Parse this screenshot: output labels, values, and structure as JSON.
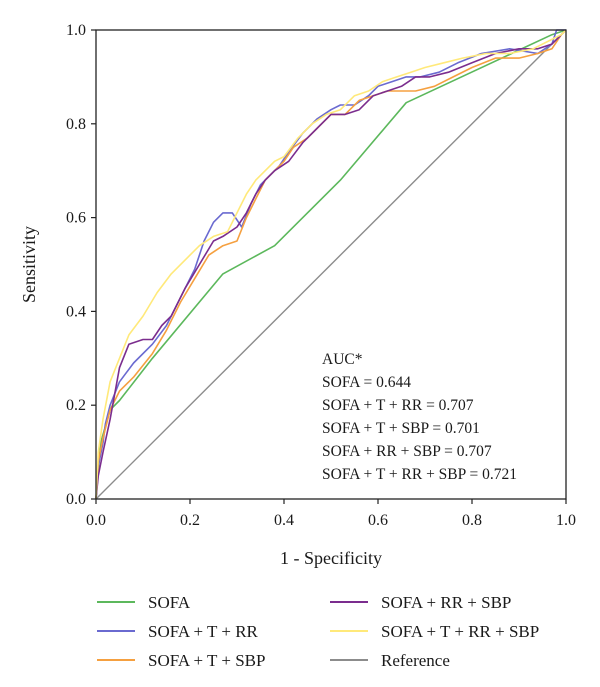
{
  "chart_data": {
    "type": "line",
    "title": "",
    "xlabel": "1 - Specificity",
    "ylabel": "Sensitivity",
    "xlim": [
      0,
      1
    ],
    "ylim": [
      0,
      1
    ],
    "xticks": [
      "0.0",
      "0.2",
      "0.4",
      "0.6",
      "0.8",
      "1.0"
    ],
    "yticks": [
      "0.0",
      "0.2",
      "0.4",
      "0.6",
      "0.8",
      "1.0"
    ],
    "grid": false,
    "legend_placement": "bottom",
    "annotation": {
      "heading": "AUC*",
      "lines": [
        "SOFA = 0.644",
        "SOFA + T + RR = 0.707",
        "SOFA + T + SBP = 0.701",
        "SOFA + RR + SBP = 0.707",
        "SOFA + T + RR + SBP = 0.721"
      ]
    },
    "series": [
      {
        "name": "SOFA",
        "color": "#5cb85c",
        "x": [
          0,
          0.01,
          0.03,
          0.05,
          0.12,
          0.27,
          0.38,
          0.52,
          0.66,
          0.97,
          1.0
        ],
        "y": [
          0,
          0.12,
          0.19,
          0.21,
          0.3,
          0.48,
          0.54,
          0.68,
          0.845,
          0.99,
          1.0
        ]
      },
      {
        "name": "SOFA + T + RR",
        "color": "#6a6ad0",
        "x": [
          0,
          0.005,
          0.015,
          0.02,
          0.03,
          0.05,
          0.08,
          0.12,
          0.15,
          0.18,
          0.21,
          0.23,
          0.25,
          0.27,
          0.29,
          0.31,
          0.33,
          0.35,
          0.37,
          0.39,
          0.41,
          0.44,
          0.47,
          0.5,
          0.52,
          0.55,
          0.58,
          0.6,
          0.63,
          0.66,
          0.69,
          0.73,
          0.77,
          0.82,
          0.88,
          0.94,
          0.97,
          0.98,
          1.0
        ],
        "y": [
          0,
          0.07,
          0.12,
          0.16,
          0.2,
          0.25,
          0.29,
          0.33,
          0.37,
          0.43,
          0.49,
          0.55,
          0.59,
          0.61,
          0.61,
          0.58,
          0.63,
          0.67,
          0.69,
          0.71,
          0.74,
          0.78,
          0.81,
          0.83,
          0.84,
          0.84,
          0.86,
          0.88,
          0.89,
          0.9,
          0.9,
          0.91,
          0.93,
          0.95,
          0.96,
          0.95,
          0.97,
          1.0,
          1.0
        ]
      },
      {
        "name": "SOFA + T + SBP",
        "color": "#f5a040",
        "x": [
          0,
          0.005,
          0.015,
          0.03,
          0.05,
          0.08,
          0.12,
          0.15,
          0.18,
          0.21,
          0.24,
          0.27,
          0.3,
          0.32,
          0.34,
          0.36,
          0.38,
          0.4,
          0.42,
          0.45,
          0.48,
          0.5,
          0.53,
          0.56,
          0.59,
          0.62,
          0.65,
          0.68,
          0.72,
          0.76,
          0.8,
          0.85,
          0.9,
          0.94,
          0.97,
          0.99,
          1.0
        ],
        "y": [
          0,
          0.08,
          0.13,
          0.19,
          0.23,
          0.26,
          0.31,
          0.36,
          0.42,
          0.47,
          0.52,
          0.54,
          0.55,
          0.6,
          0.64,
          0.68,
          0.7,
          0.72,
          0.75,
          0.77,
          0.8,
          0.82,
          0.82,
          0.85,
          0.86,
          0.87,
          0.87,
          0.87,
          0.88,
          0.9,
          0.92,
          0.94,
          0.94,
          0.95,
          0.96,
          0.99,
          1.0
        ]
      },
      {
        "name": "SOFA + RR + SBP",
        "color": "#7b2d8e",
        "x": [
          0,
          0.005,
          0.015,
          0.03,
          0.05,
          0.07,
          0.1,
          0.12,
          0.14,
          0.16,
          0.19,
          0.22,
          0.25,
          0.27,
          0.3,
          0.32,
          0.34,
          0.36,
          0.38,
          0.41,
          0.44,
          0.47,
          0.5,
          0.53,
          0.56,
          0.59,
          0.62,
          0.65,
          0.68,
          0.71,
          0.75,
          0.8,
          0.85,
          0.9,
          0.94,
          0.97,
          0.99,
          1.0
        ],
        "y": [
          0,
          0.05,
          0.1,
          0.17,
          0.28,
          0.33,
          0.34,
          0.34,
          0.37,
          0.39,
          0.45,
          0.5,
          0.55,
          0.56,
          0.58,
          0.61,
          0.65,
          0.68,
          0.7,
          0.72,
          0.76,
          0.79,
          0.82,
          0.82,
          0.83,
          0.86,
          0.87,
          0.88,
          0.9,
          0.9,
          0.91,
          0.93,
          0.95,
          0.96,
          0.96,
          0.97,
          0.99,
          1.0
        ]
      },
      {
        "name": "SOFA + T + RR + SBP",
        "color": "#ffe97a",
        "x": [
          0,
          0.005,
          0.015,
          0.03,
          0.05,
          0.07,
          0.1,
          0.13,
          0.16,
          0.19,
          0.22,
          0.25,
          0.28,
          0.3,
          0.32,
          0.34,
          0.36,
          0.38,
          0.4,
          0.43,
          0.46,
          0.49,
          0.52,
          0.55,
          0.58,
          0.61,
          0.64,
          0.67,
          0.7,
          0.74,
          0.78,
          0.83,
          0.88,
          0.93,
          0.97,
          0.99,
          1.0
        ],
        "y": [
          0,
          0.1,
          0.17,
          0.25,
          0.3,
          0.35,
          0.39,
          0.44,
          0.48,
          0.51,
          0.54,
          0.56,
          0.57,
          0.61,
          0.65,
          0.68,
          0.7,
          0.72,
          0.73,
          0.77,
          0.8,
          0.82,
          0.83,
          0.86,
          0.87,
          0.89,
          0.9,
          0.91,
          0.92,
          0.93,
          0.94,
          0.95,
          0.95,
          0.96,
          0.98,
          0.99,
          1.0
        ]
      },
      {
        "name": "Reference",
        "color": "#8c8c8c",
        "x": [
          0,
          1
        ],
        "y": [
          0,
          1
        ]
      }
    ]
  }
}
